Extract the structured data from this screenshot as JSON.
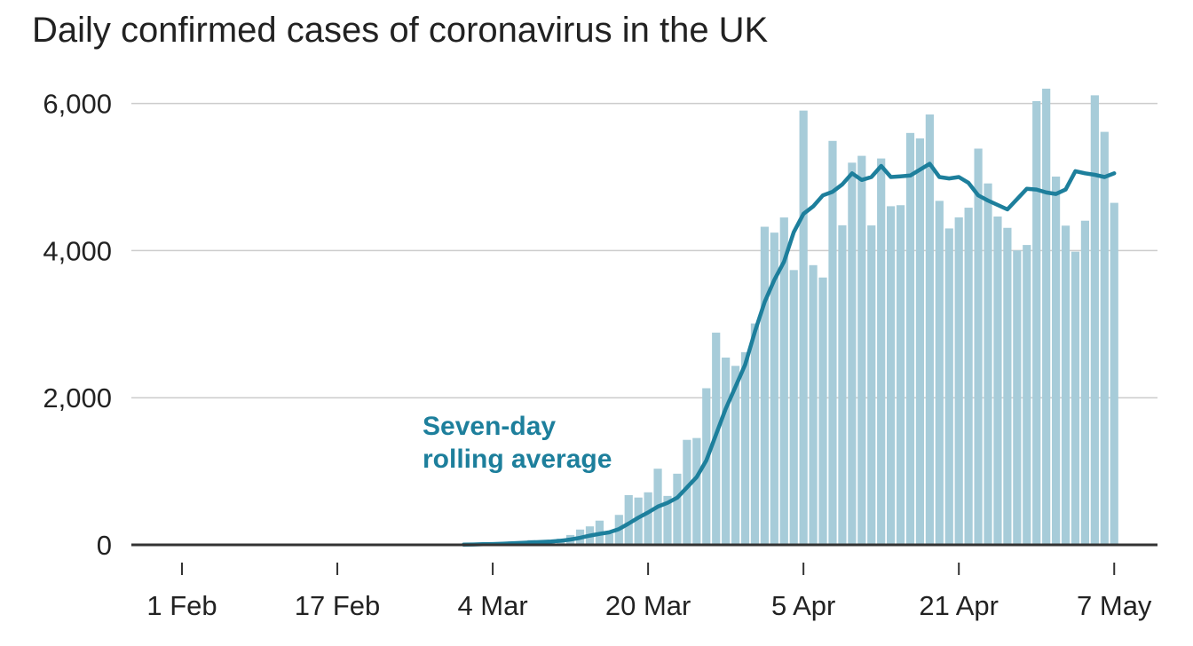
{
  "chart_data": {
    "type": "bar",
    "title": "Daily confirmed cases of coronavirus in the UK",
    "xlabel": "",
    "ylabel": "",
    "ylim": [
      0,
      6200
    ],
    "yticks": [
      0,
      2000,
      4000,
      6000
    ],
    "ytick_labels": [
      "0",
      "2,000",
      "4,000",
      "6,000"
    ],
    "xtick_labels": [
      "1 Feb",
      "17 Feb",
      "4 Mar",
      "20 Mar",
      "5 Apr",
      "21 Apr",
      "7 May"
    ],
    "grid": true,
    "annotation": [
      "Seven-day",
      "rolling average"
    ],
    "colors": {
      "bars": "#a7ccd9",
      "line": "#1d7f9c",
      "grid": "#cccccc",
      "baseline": "#333333",
      "annotation": "#1d7f9c"
    },
    "series": [
      {
        "type": "bar",
        "x": [
          "2020-02-28",
          "2020-02-29",
          "2020-03-01",
          "2020-03-02",
          "2020-03-03",
          "2020-03-04",
          "2020-03-05",
          "2020-03-06",
          "2020-03-07",
          "2020-03-08",
          "2020-03-09",
          "2020-03-10",
          "2020-03-11",
          "2020-03-12",
          "2020-03-13",
          "2020-03-14",
          "2020-03-15",
          "2020-03-16",
          "2020-03-17",
          "2020-03-18",
          "2020-03-19",
          "2020-03-20",
          "2020-03-21",
          "2020-03-22",
          "2020-03-23",
          "2020-03-24",
          "2020-03-25",
          "2020-03-26",
          "2020-03-27",
          "2020-03-28",
          "2020-03-29",
          "2020-03-30",
          "2020-03-31",
          "2020-04-01",
          "2020-04-02",
          "2020-04-03",
          "2020-04-04",
          "2020-04-05",
          "2020-04-06",
          "2020-04-07",
          "2020-04-08",
          "2020-04-09",
          "2020-04-10",
          "2020-04-11",
          "2020-04-12",
          "2020-04-13",
          "2020-04-14",
          "2020-04-15",
          "2020-04-16",
          "2020-04-17",
          "2020-04-18",
          "2020-04-19",
          "2020-04-20",
          "2020-04-21",
          "2020-04-22",
          "2020-04-23",
          "2020-04-24",
          "2020-04-25",
          "2020-04-26",
          "2020-04-27",
          "2020-04-28",
          "2020-04-29",
          "2020-04-30",
          "2020-05-01",
          "2020-05-02",
          "2020-05-03",
          "2020-05-04",
          "2020-05-05",
          "2020-05-06",
          "2020-05-07"
        ],
        "values": [
          2,
          3,
          12,
          4,
          11,
          34,
          29,
          46,
          46,
          65,
          50,
          67,
          83,
          134,
          208,
          251,
          329,
          152,
          407,
          676,
          643,
          714,
          1035,
          665,
          967,
          1427,
          1452,
          2129,
          2885,
          2546,
          2433,
          2619,
          3009,
          4324,
          4244,
          4450,
          3735,
          5903,
          3802,
          3634,
          5491,
          4344,
          5195,
          5288,
          4342,
          5252,
          4603,
          4617,
          5599,
          5525,
          5850,
          4676,
          4301,
          4451,
          4583,
          5386,
          4913,
          4463,
          4309,
          4002,
          4076,
          6032,
          6201,
          5006,
          4339,
          3985,
          4406,
          6111,
          5614,
          4649
        ]
      },
      {
        "type": "line",
        "name": "Seven-day rolling average",
        "x": [
          "2020-03-01",
          "2020-03-02",
          "2020-03-03",
          "2020-03-04",
          "2020-03-05",
          "2020-03-06",
          "2020-03-07",
          "2020-03-08",
          "2020-03-09",
          "2020-03-10",
          "2020-03-11",
          "2020-03-12",
          "2020-03-13",
          "2020-03-14",
          "2020-03-15",
          "2020-03-16",
          "2020-03-17",
          "2020-03-18",
          "2020-03-19",
          "2020-03-20",
          "2020-03-21",
          "2020-03-22",
          "2020-03-23",
          "2020-03-24",
          "2020-03-25",
          "2020-03-26",
          "2020-03-27",
          "2020-03-28",
          "2020-03-29",
          "2020-03-30",
          "2020-03-31",
          "2020-04-01",
          "2020-04-02",
          "2020-04-03",
          "2020-04-04",
          "2020-04-05",
          "2020-04-06",
          "2020-04-07",
          "2020-04-08",
          "2020-04-09",
          "2020-04-10",
          "2020-04-11",
          "2020-04-12",
          "2020-04-13",
          "2020-04-14",
          "2020-04-15",
          "2020-04-16",
          "2020-04-17",
          "2020-04-18",
          "2020-04-19",
          "2020-04-20",
          "2020-04-21",
          "2020-04-22",
          "2020-04-23",
          "2020-04-24",
          "2020-04-25",
          "2020-04-26",
          "2020-04-27",
          "2020-04-28",
          "2020-04-29",
          "2020-04-30",
          "2020-05-01",
          "2020-05-02",
          "2020-05-03",
          "2020-05-04",
          "2020-05-05",
          "2020-05-06",
          "2020-05-07"
        ],
        "values": [
          3,
          5,
          8,
          11,
          15,
          20,
          26,
          32,
          38,
          45,
          55,
          72,
          95,
          125,
          150,
          170,
          215,
          290,
          370,
          440,
          520,
          570,
          640,
          780,
          920,
          1150,
          1500,
          1850,
          2150,
          2450,
          2900,
          3300,
          3600,
          3850,
          4250,
          4500,
          4600,
          4750,
          4800,
          4900,
          5050,
          4960,
          5000,
          5150,
          5000,
          5010,
          5020,
          5100,
          5180,
          5000,
          4980,
          5000,
          4920,
          4750,
          4680,
          4620,
          4560,
          4700,
          4840,
          4830,
          4790,
          4770,
          4830,
          5080,
          5050,
          5030,
          5000,
          5050
        ]
      }
    ]
  }
}
